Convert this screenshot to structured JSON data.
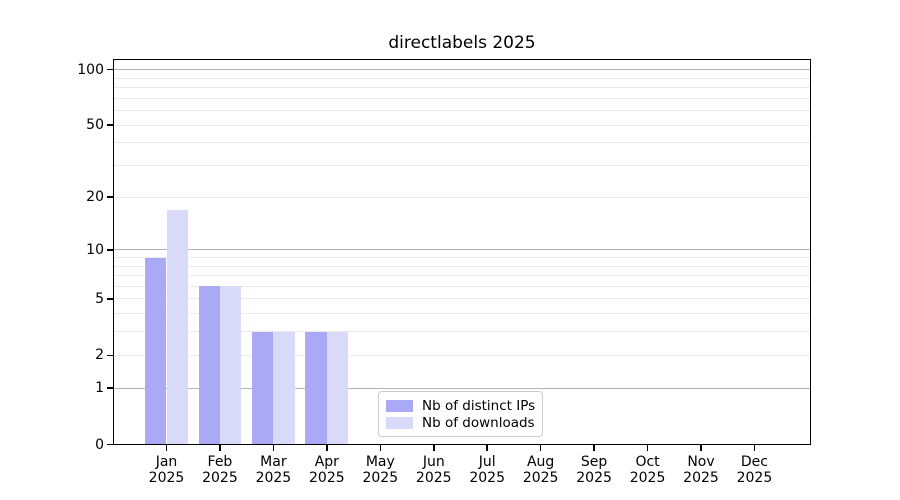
{
  "title": "directlabels 2025",
  "chart_data": {
    "type": "bar",
    "title": "directlabels 2025",
    "categories": [
      "Jan",
      "Feb",
      "Mar",
      "Apr",
      "May",
      "Jun",
      "Jul",
      "Aug",
      "Sep",
      "Oct",
      "Nov",
      "Dec"
    ],
    "x_year_line": "2025",
    "series": [
      {
        "name": "Nb of distinct IPs",
        "color": "#a9a9f6",
        "values": [
          9,
          6,
          3,
          3,
          0,
          0,
          0,
          0,
          0,
          0,
          0,
          0
        ]
      },
      {
        "name": "Nb of downloads",
        "color": "#d9d9fa",
        "values": [
          17,
          6,
          3,
          3,
          0,
          0,
          0,
          0,
          0,
          0,
          0,
          0
        ]
      }
    ],
    "yscale": "log10(1+y)",
    "ylim": [
      0,
      115
    ],
    "yticks": [
      100,
      50,
      20,
      10,
      5,
      2,
      1,
      0
    ],
    "major_gridlines": [
      1,
      10,
      100
    ],
    "minor_gridlines": [
      2,
      3,
      4,
      5,
      6,
      7,
      8,
      9,
      20,
      30,
      40,
      50,
      60,
      70,
      80,
      90
    ],
    "grid": "horizontal",
    "legend_position": "lower center",
    "colors": {
      "grid_major": "#b3b3b3",
      "grid_minor": "#eaeaea",
      "axis": "#000000",
      "text": "#000000",
      "background": "#ffffff",
      "legend_border": "#cccccc"
    }
  }
}
